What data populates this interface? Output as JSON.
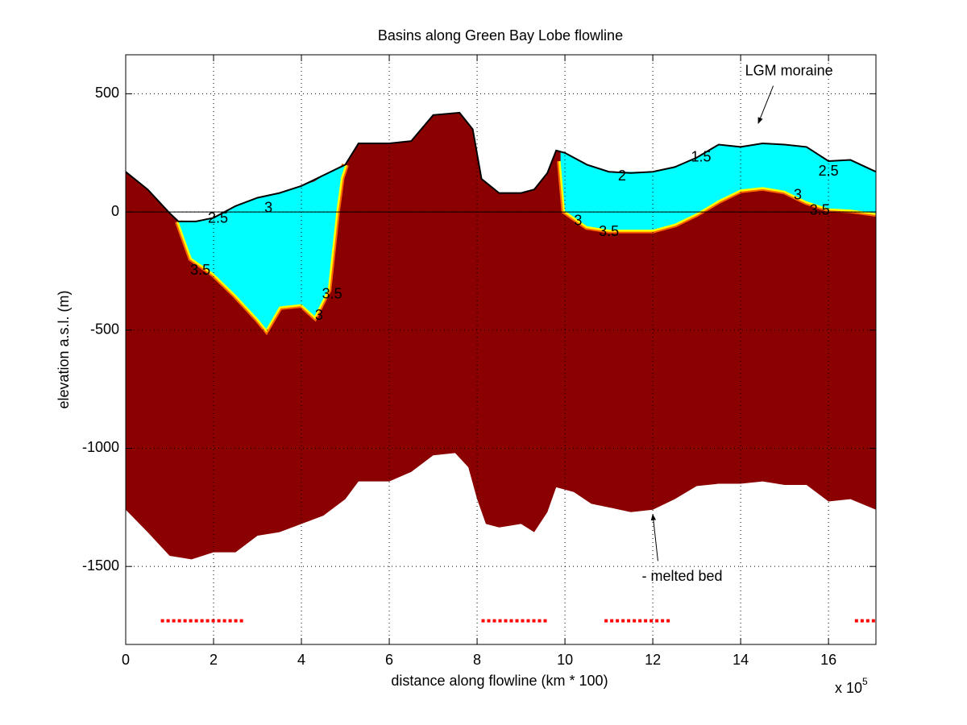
{
  "chart_data": {
    "type": "area",
    "title": "Basins along Green Bay Lobe flowline",
    "x_label": "distance along flowline (km * 100)",
    "y_label": "elevation a.s.l. (m)",
    "x_multiplier": {
      "base": "x 10",
      "exponent": "5"
    },
    "xlim": [
      0,
      17.08
    ],
    "ylim": [
      -1830,
      665
    ],
    "xticks": [
      0,
      2,
      4,
      6,
      8,
      10,
      12,
      14,
      16
    ],
    "yticks": [
      500,
      0,
      -500,
      -1000,
      -1500
    ],
    "grid": true,
    "ice_color": "#8b0000",
    "water_color": "#00ffff",
    "shore_color": "#ffff00",
    "melted_color": "#ff0000",
    "surface": {
      "x": [
        0,
        0.5,
        1,
        1.2,
        1.6,
        2,
        2.5,
        3,
        3.5,
        4,
        4.5,
        5,
        5.3,
        6,
        6.5,
        7,
        7.6,
        7.9,
        8.1,
        8.5,
        9,
        9.3,
        9.6,
        9.8,
        10,
        10.5,
        11,
        11.5,
        12,
        12.5,
        13,
        13.5,
        14,
        14.5,
        15,
        15.5,
        16,
        16.5,
        17.08
      ],
      "values": [
        170,
        95,
        -5,
        -40,
        -40,
        -25,
        25,
        60,
        80,
        110,
        155,
        200,
        290,
        290,
        300,
        410,
        420,
        350,
        140,
        80,
        80,
        95,
        165,
        260,
        250,
        200,
        170,
        165,
        170,
        190,
        230,
        285,
        275,
        290,
        285,
        275,
        215,
        220,
        170
      ]
    },
    "bed": {
      "x": [
        0,
        0.5,
        1,
        1.5,
        2,
        2.5,
        3,
        3.5,
        4,
        4.5,
        5,
        5.3,
        6,
        6.5,
        7,
        7.5,
        7.8,
        8,
        8.2,
        8.5,
        9,
        9.3,
        9.6,
        9.8,
        10.2,
        10.6,
        11,
        11.5,
        12,
        12.5,
        13,
        13.5,
        14,
        14.5,
        15,
        15.5,
        16,
        16.5,
        17.08
      ],
      "values": [
        -1260,
        -1355,
        -1455,
        -1470,
        -1440,
        -1440,
        -1370,
        -1355,
        -1320,
        -1285,
        -1215,
        -1140,
        -1140,
        -1100,
        -1030,
        -1020,
        -1080,
        -1215,
        -1320,
        -1335,
        -1320,
        -1355,
        -1270,
        -1165,
        -1185,
        -1235,
        -1250,
        -1270,
        -1260,
        -1215,
        -1160,
        -1150,
        -1150,
        -1140,
        -1155,
        -1155,
        -1225,
        -1215,
        -1260
      ]
    },
    "lakes": {
      "x": [
        1.2,
        1.5,
        2,
        2.5,
        3,
        3.2,
        3.5,
        4,
        4.3,
        4.6,
        4.8,
        4.9,
        5,
        5.1,
        9.9,
        10,
        10.5,
        11,
        12,
        12.5,
        13,
        13.5,
        14,
        14.5,
        15,
        15.5,
        16,
        16.5,
        17.08
      ],
      "top": [
        -40,
        -40,
        -25,
        25,
        60,
        70,
        80,
        110,
        130,
        165,
        180,
        190,
        200,
        null,
        255,
        250,
        200,
        170,
        170,
        190,
        230,
        285,
        275,
        290,
        285,
        275,
        215,
        220,
        170
      ],
      "floor": [
        -40,
        -195,
        -260,
        -350,
        -450,
        -495,
        -400,
        -390,
        -440,
        -330,
        10,
        145,
        200,
        null,
        215,
        5,
        -60,
        -75,
        -75,
        -50,
        -5,
        50,
        95,
        105,
        90,
        45,
        15,
        10,
        -5
      ]
    },
    "melted_bed_level": -1730,
    "melted_bed_segments": [
      [
        0.8,
        2.7
      ],
      [
        8.1,
        9.6
      ],
      [
        10.9,
        12.4
      ],
      [
        16.6,
        17.08
      ]
    ],
    "contour_labels": [
      {
        "text": "2.5",
        "x": 2.1,
        "y": -30
      },
      {
        "text": "3",
        "x": 3.25,
        "y": 15
      },
      {
        "text": "3.5",
        "x": 1.7,
        "y": -250
      },
      {
        "text": "3.5",
        "x": 4.7,
        "y": -350
      },
      {
        "text": "3",
        "x": 4.4,
        "y": -440
      },
      {
        "text": "3",
        "x": 10.3,
        "y": -40
      },
      {
        "text": "3.5",
        "x": 11,
        "y": -85
      },
      {
        "text": "2",
        "x": 11.3,
        "y": 150
      },
      {
        "text": "1.5",
        "x": 13.1,
        "y": 230
      },
      {
        "text": "2.5",
        "x": 16,
        "y": 170
      },
      {
        "text": "3",
        "x": 15.3,
        "y": 70
      },
      {
        "text": "3.5",
        "x": 15.8,
        "y": 5
      }
    ],
    "annotations": [
      {
        "text": "LGM moraine",
        "x": 14.1,
        "y": 595,
        "arrow_x": 14.4,
        "arrow_y": 375
      },
      {
        "text": "- melted bed",
        "x": 11.75,
        "y": -1545,
        "arrow_x": 12,
        "arrow_y": -1280
      }
    ]
  }
}
